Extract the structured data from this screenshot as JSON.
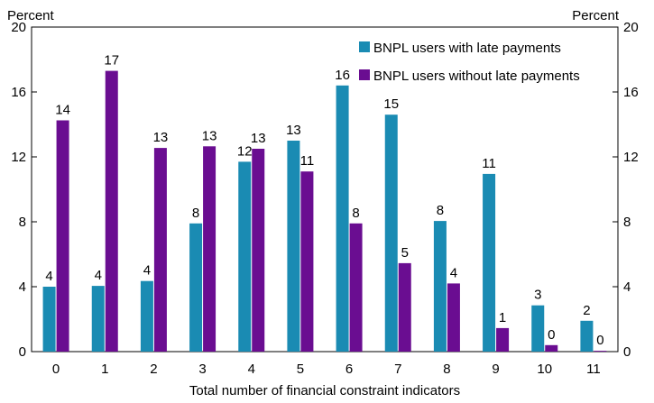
{
  "chart_data": {
    "type": "bar",
    "title": "",
    "xlabel": "Total number of financial constraint indicators",
    "ylabel_left": "Percent",
    "ylabel_right": "Percent",
    "ylim": [
      0,
      20
    ],
    "yticks": [
      0,
      4,
      8,
      12,
      16,
      20
    ],
    "grid": false,
    "legend_position": "top-right",
    "categories": [
      "0",
      "1",
      "2",
      "3",
      "4",
      "5",
      "6",
      "7",
      "8",
      "9",
      "10",
      "11"
    ],
    "series": [
      {
        "name": "BNPL users with late payments",
        "color": "#1a8bb3",
        "values": [
          4.0,
          4.05,
          4.35,
          7.9,
          11.7,
          13.0,
          16.4,
          14.6,
          8.05,
          10.95,
          2.85,
          1.9
        ],
        "labels": [
          "4",
          "4",
          "4",
          "8",
          "12",
          "13",
          "16",
          "15",
          "8",
          "11",
          "3",
          "2"
        ]
      },
      {
        "name": "BNPL users without late payments",
        "color": "#6a0d91",
        "values": [
          14.25,
          17.3,
          12.55,
          12.65,
          12.5,
          11.1,
          7.9,
          5.45,
          4.2,
          1.45,
          0.4,
          0.05
        ],
        "labels": [
          "14",
          "17",
          "13",
          "13",
          "13",
          "11",
          "8",
          "5",
          "4",
          "1",
          "0",
          "0"
        ]
      }
    ]
  }
}
